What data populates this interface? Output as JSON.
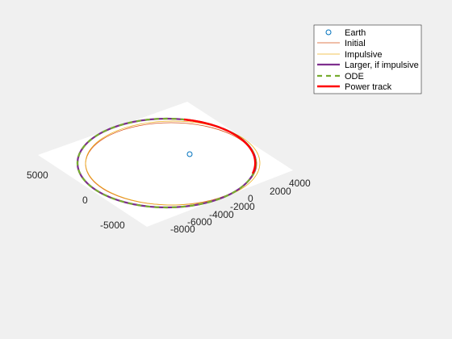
{
  "chart_data": {
    "type": "line",
    "view": "3d",
    "grid": false,
    "legend_placement": "top-right",
    "legend": [
      {
        "label": "Earth",
        "color": "#0072bd",
        "style": "circle-marker"
      },
      {
        "label": "Initial",
        "color": "#d95319",
        "style": "thin-line"
      },
      {
        "label": "Impulsive",
        "color": "#edb120",
        "style": "thin-line"
      },
      {
        "label": "Larger, if impulsive",
        "color": "#7e2f8e",
        "style": "thick-line"
      },
      {
        "label": "ODE",
        "color": "#77ac30",
        "style": "dashed-line"
      },
      {
        "label": "Power track",
        "color": "#ff0000",
        "style": "thick-line"
      }
    ],
    "axes": {
      "x": {
        "ticks": [
          -8000,
          -6000,
          -4000,
          -2000,
          0,
          2000,
          4000
        ],
        "tick_labels": [
          "-8000",
          "-6000",
          "-4000",
          "-2000",
          "0",
          "2000",
          "4000"
        ]
      },
      "y": {
        "ticks": [
          -5000,
          0,
          5000
        ],
        "tick_labels": [
          "-5000",
          "0",
          "5000"
        ]
      }
    },
    "series": [
      {
        "name": "Earth",
        "points": [
          [
            0,
            0,
            0
          ]
        ]
      },
      {
        "name": "Initial",
        "shape": "ellipse"
      },
      {
        "name": "Impulsive",
        "shape": "ellipse"
      },
      {
        "name": "Larger, if impulsive",
        "shape": "ellipse"
      },
      {
        "name": "ODE",
        "shape": "ellipse"
      },
      {
        "name": "Power track",
        "shape": "ellipse-arc"
      }
    ]
  }
}
